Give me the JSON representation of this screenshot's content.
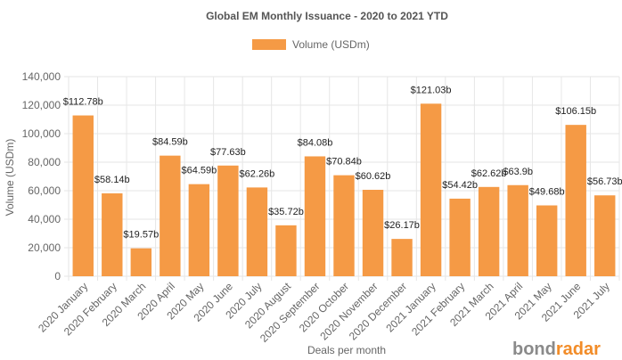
{
  "chart_data": {
    "type": "bar",
    "title": "Global EM Monthly Issuance - 2020 to 2021 YTD",
    "xlabel": "Deals per month",
    "ylabel": "Volume (USDm)",
    "ylim": [
      0,
      140000
    ],
    "yticks": [
      "0",
      "20,000",
      "40,000",
      "60,000",
      "80,000",
      "100,000",
      "120,000",
      "140,000"
    ],
    "legend": {
      "position": "top",
      "entries": [
        "Volume (USDm)"
      ]
    },
    "grid": true,
    "bar_color": "#f59a45",
    "categories": [
      "2020 January",
      "2020 February",
      "2020 March",
      "2020 April",
      "2020 May",
      "2020 June",
      "2020 July",
      "2020 August",
      "2020 September",
      "2020 October",
      "2020 November",
      "2020 December",
      "2021 January",
      "2021 February",
      "2021 March",
      "2021 April",
      "2021 May",
      "2021 June",
      "2021 July"
    ],
    "series": [
      {
        "name": "Volume (USDm)",
        "values": [
          112780,
          58140,
          19570,
          84590,
          64590,
          77630,
          62260,
          35720,
          84080,
          70840,
          60620,
          26170,
          121030,
          54420,
          62620,
          63900,
          49680,
          106150,
          56730
        ],
        "labels": [
          "$112.78b",
          "$58.14b",
          "$19.57b",
          "$84.59b",
          "$64.59b",
          "$77.63b",
          "$62.26b",
          "$35.72b",
          "$84.08b",
          "$70.84b",
          "$60.62b",
          "$26.17b",
          "$121.03b",
          "$54.42b",
          "$62.62b",
          "$63.9b",
          "$49.68b",
          "$106.15b",
          "$56.73b"
        ]
      }
    ]
  },
  "branding": {
    "logo_part1": "bond",
    "logo_part2": "radar"
  }
}
